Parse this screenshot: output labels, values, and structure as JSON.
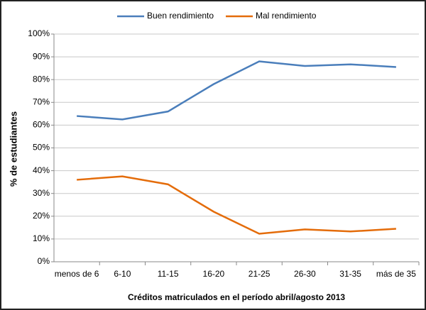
{
  "chart_data": {
    "type": "line",
    "x_label": "Créditos matriculados en el período abril/agosto 2013",
    "y_label": "% de estudiantes",
    "categories": [
      "menos de 6",
      "6-10",
      "11-15",
      "16-20",
      "21-25",
      "26-30",
      "31-35",
      "más de 35"
    ],
    "series": [
      {
        "name": "Buen rendimiento",
        "color": "#4a7ebb",
        "values": [
          64,
          62.5,
          66,
          78,
          88,
          86,
          86.7,
          85.5
        ]
      },
      {
        "name": "Mal rendimiento",
        "color": "#e46c0a",
        "values": [
          36,
          37.5,
          34,
          22,
          12.3,
          14.2,
          13.3,
          14.5
        ]
      }
    ],
    "ylim": [
      0,
      100
    ],
    "yticks": [
      {
        "value": 0,
        "label": "0%"
      },
      {
        "value": 10,
        "label": "10%"
      },
      {
        "value": 20,
        "label": "20%"
      },
      {
        "value": 30,
        "label": "30%"
      },
      {
        "value": 40,
        "label": "40%"
      },
      {
        "value": 50,
        "label": "50%"
      },
      {
        "value": 60,
        "label": "60%"
      },
      {
        "value": 70,
        "label": "70%"
      },
      {
        "value": 80,
        "label": "80%"
      },
      {
        "value": 90,
        "label": "90%"
      },
      {
        "value": 100,
        "label": "100%"
      }
    ],
    "grid": true,
    "legend": "top"
  }
}
